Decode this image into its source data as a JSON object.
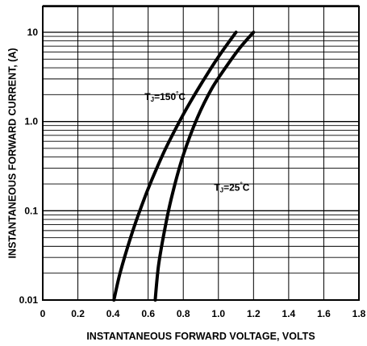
{
  "chart_data": {
    "type": "line",
    "xlabel": "INSTANTANEOUS FORWARD VOLTAGE, VOLTS",
    "ylabel": "INSTANTANEOUS FORWARD CURRENT, (A)",
    "xlim": [
      0,
      1.8
    ],
    "ylim": [
      0.01,
      20
    ],
    "yscale": "log",
    "grid": true,
    "x_ticks": [
      0,
      0.2,
      0.4,
      0.6,
      0.8,
      1.0,
      1.2,
      1.4,
      1.6,
      1.8
    ],
    "x_tick_labels": [
      "0",
      "0.2",
      "0.4",
      "0.6",
      "0.8",
      "1.0",
      "1.2",
      "1.4",
      "1.6",
      "1.8"
    ],
    "y_ticks": [
      0.01,
      0.1,
      1,
      10
    ],
    "y_tick_labels": [
      "0.01",
      "0.1",
      "1.0",
      "10"
    ],
    "series": [
      {
        "name": "TJ=150°C",
        "x": [
          0.405,
          0.44,
          0.5,
          0.56,
          0.62,
          0.7,
          0.8,
          0.9,
          1.0,
          1.1
        ],
        "y": [
          0.01,
          0.02,
          0.05,
          0.11,
          0.22,
          0.5,
          1.2,
          2.6,
          5.3,
          10
        ]
      },
      {
        "name": "TJ=25°C",
        "x": [
          0.64,
          0.66,
          0.7,
          0.74,
          0.8,
          0.88,
          0.96,
          1.04,
          1.12,
          1.2
        ],
        "y": [
          0.01,
          0.025,
          0.07,
          0.16,
          0.42,
          1.1,
          2.3,
          4.0,
          6.6,
          10
        ]
      }
    ],
    "annotations": [
      {
        "label_main": "T",
        "label_sub": "J",
        "label_rest": "=150",
        "label_sup": "°",
        "label_unit": "C",
        "x": 0.58,
        "y": 1.75
      },
      {
        "label_main": "T",
        "label_sub": "J",
        "label_rest": "=25",
        "label_sup": "°",
        "label_unit": "C",
        "x": 0.975,
        "y": 0.168
      }
    ]
  }
}
